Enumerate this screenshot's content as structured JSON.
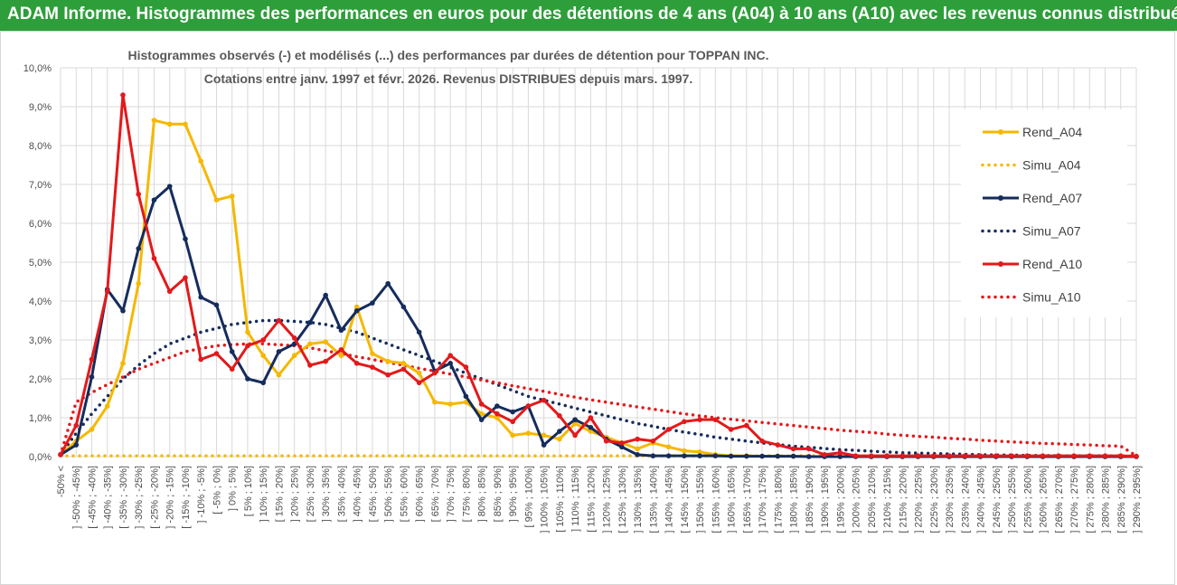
{
  "header": {
    "title": "ADAM Informe. Histogrammes des performances en euros pour des détentions de 4 ans (A04) à 10 ans (A10) avec les revenus connus distribués"
  },
  "colors": {
    "header_bg": "#2e9e3a",
    "a04": "#f5b800",
    "a07": "#152c5c",
    "a10": "#e3191b",
    "grid": "#d9d9d9",
    "axis_text": "#4d4d4d"
  },
  "chart_data": {
    "type": "line",
    "title_lines": [
      "Histogrammes observés (-) et modélisés (...) des performances par durées de détention pour TOPPAN INC.",
      "Cotations entre janv. 1997 et févr. 2026. Revenus DISTRIBUES depuis mars. 1997."
    ],
    "ylim": [
      0,
      10
    ],
    "y_ticks": [
      "0,0%",
      "1,0%",
      "2,0%",
      "3,0%",
      "4,0%",
      "5,0%",
      "6,0%",
      "7,0%",
      "8,0%",
      "9,0%",
      "10,0%"
    ],
    "categories": [
      "-50% <",
      "] -50% ; -45%]",
      "[ -45% ; -40%]",
      "] -40% ; -35%]",
      "[ -35% ; -30%]",
      "] -30% ; -25%]",
      "[ -25% ; -20%]",
      "] -20% ; -15%]",
      "[ -15% ; -10%]",
      "] -10% ; -5%]",
      "[ -5% ; 0%]",
      "] 0% ; 5%]",
      "[ 5% ; 10%]",
      "] 10% ; 15%]",
      "[ 15% ; 20%]",
      "] 20% ; 25%]",
      "[ 25% ; 30%]",
      "] 30% ; 35%]",
      "[ 35% ; 40%]",
      "] 40% ; 45%]",
      "[ 45% ; 50%]",
      "] 50% ; 55%]",
      "[ 55% ; 60%]",
      "] 60% ; 65%]",
      "[ 65% ; 70%]",
      "] 70% ; 75%]",
      "[ 75% ; 80%]",
      "] 80% ; 85%]",
      "[ 85% ; 90%]",
      "] 90% ; 95%]",
      "[ 95% ; 100%]",
      "] 100% ; 105%]",
      "[ 105% ; 110%]",
      "] 110% ; 115%]",
      "[ 115% ; 120%]",
      "] 120% ; 125%]",
      "[ 125% ; 130%]",
      "] 130% ; 135%]",
      "[ 135% ; 140%]",
      "] 140% ; 145%]",
      "[ 145% ; 150%]",
      "] 150% ; 155%]",
      "[ 155% ; 160%]",
      "] 160% ; 165%]",
      "[ 165% ; 170%]",
      "] 170% ; 175%]",
      "[ 175% ; 180%]",
      "] 180% ; 185%]",
      "[ 185% ; 190%]",
      "] 190% ; 195%]",
      "[ 195% ; 200%]",
      "] 200% ; 205%]",
      "[ 205% ; 210%]",
      "] 210% ; 215%]",
      "[ 215% ; 220%]",
      "] 220% ; 225%]",
      "[ 225% ; 230%]",
      "] 230% ; 235%]",
      "[ 235% ; 240%]",
      "] 240% ; 245%]",
      "[ 245% ; 250%]",
      "] 250% ; 255%]",
      "[ 255% ; 260%]",
      "] 260% ; 265%]",
      "[ 265% ; 270%]",
      "] 270% ; 275%]",
      "[ 275% ; 280%]",
      "] 280% ; 285%]",
      "[ 285% ; 290%]",
      "] 290% ; 295%]"
    ],
    "series": [
      {
        "name": "Rend_A04",
        "style": "solid",
        "color": "#f5b800",
        "values": [
          0.05,
          0.4,
          0.7,
          1.3,
          2.4,
          4.45,
          8.65,
          8.55,
          8.55,
          7.6,
          6.6,
          6.7,
          3.2,
          2.6,
          2.1,
          2.6,
          2.9,
          2.95,
          2.6,
          3.85,
          2.65,
          2.45,
          2.4,
          2.15,
          1.4,
          1.35,
          1.4,
          1.1,
          1.0,
          0.55,
          0.6,
          0.55,
          0.45,
          0.85,
          0.65,
          0.5,
          0.35,
          0.2,
          0.35,
          0.25,
          0.15,
          0.12,
          0.05,
          0.02,
          0.02,
          0.01,
          0.01,
          0.01,
          0,
          0,
          0,
          0,
          0,
          0,
          0,
          0,
          0,
          0,
          0,
          0,
          0,
          0,
          0,
          0,
          0,
          0,
          0,
          0,
          0,
          0
        ]
      },
      {
        "name": "Simu_A04",
        "style": "dotted",
        "color": "#f5b800",
        "values": [
          0.02,
          0.02,
          0.02,
          0.02,
          0.02,
          0.02,
          0.02,
          0.02,
          0.02,
          0.02,
          0.02,
          0.02,
          0.02,
          0.02,
          0.02,
          0.02,
          0.02,
          0.02,
          0.02,
          0.02,
          0.02,
          0.02,
          0.02,
          0.02,
          0.02,
          0.02,
          0.02,
          0.02,
          0.02,
          0.02,
          0.02,
          0.02,
          0.02,
          0.02,
          0.02,
          0.02,
          0.02,
          0.02,
          0.02,
          0.02,
          0.02,
          0.02,
          0.02,
          0.02,
          0.02,
          0.02,
          0.02,
          0.02,
          0.02,
          0.02,
          0.02,
          0.02,
          0.02,
          0.02,
          0.02,
          0.02,
          0.02,
          0.02,
          0.02,
          0.02,
          0.02,
          0.02,
          0.02,
          0.02,
          0.02,
          0.02,
          0.02,
          0.02,
          0.02,
          0.02
        ]
      },
      {
        "name": "Rend_A07",
        "style": "solid",
        "color": "#152c5c",
        "values": [
          0.05,
          0.3,
          2.05,
          4.3,
          3.75,
          5.35,
          6.6,
          6.95,
          5.6,
          4.1,
          3.9,
          2.7,
          2.0,
          1.9,
          2.7,
          2.9,
          3.45,
          4.15,
          3.25,
          3.75,
          3.95,
          4.45,
          3.85,
          3.2,
          2.2,
          2.4,
          1.55,
          0.95,
          1.3,
          1.15,
          1.3,
          0.3,
          0.65,
          0.95,
          0.75,
          0.45,
          0.25,
          0.05,
          0.02,
          0.02,
          0.02,
          0.02,
          0.02,
          0.01,
          0.01,
          0.01,
          0.01,
          0.01,
          0,
          0,
          0,
          0,
          0,
          0,
          0,
          0,
          0,
          0,
          0,
          0,
          0,
          0,
          0,
          0,
          0,
          0,
          0,
          0,
          0,
          0
        ]
      },
      {
        "name": "Simu_A07",
        "style": "dotted",
        "color": "#152c5c",
        "values": [
          0.05,
          0.6,
          1.1,
          1.55,
          2.0,
          2.35,
          2.65,
          2.9,
          3.05,
          3.2,
          3.3,
          3.4,
          3.45,
          3.5,
          3.5,
          3.48,
          3.45,
          3.4,
          3.3,
          3.2,
          3.05,
          2.9,
          2.75,
          2.6,
          2.45,
          2.3,
          2.15,
          2.0,
          1.85,
          1.7,
          1.55,
          1.45,
          1.35,
          1.25,
          1.15,
          1.05,
          0.95,
          0.85,
          0.78,
          0.7,
          0.63,
          0.57,
          0.5,
          0.45,
          0.4,
          0.35,
          0.31,
          0.27,
          0.24,
          0.21,
          0.18,
          0.16,
          0.14,
          0.12,
          0.1,
          0.09,
          0.08,
          0.07,
          0.06,
          0.05,
          0.04,
          0.04,
          0.03,
          0.03,
          0.02,
          0.02,
          0.02,
          0.02,
          0.01,
          0.01
        ]
      },
      {
        "name": "Rend_A10",
        "style": "solid",
        "color": "#e3191b",
        "values": [
          0.05,
          0.8,
          2.5,
          4.25,
          9.3,
          6.75,
          5.1,
          4.25,
          4.6,
          2.5,
          2.65,
          2.25,
          2.85,
          3.0,
          3.5,
          3.05,
          2.35,
          2.45,
          2.75,
          2.4,
          2.3,
          2.1,
          2.25,
          1.9,
          2.15,
          2.6,
          2.3,
          1.35,
          1.1,
          0.9,
          1.3,
          1.45,
          1.05,
          0.55,
          1.0,
          0.4,
          0.35,
          0.45,
          0.4,
          0.7,
          0.9,
          0.95,
          0.95,
          0.7,
          0.8,
          0.4,
          0.3,
          0.2,
          0.2,
          0.05,
          0.1,
          0.02,
          0.02,
          0.02,
          0.02,
          0.02,
          0.02,
          0.02,
          0.02,
          0.02,
          0.02,
          0.02,
          0.02,
          0.02,
          0.02,
          0.02,
          0.02,
          0.02,
          0.02,
          0.01
        ]
      },
      {
        "name": "Simu_A10",
        "style": "dotted",
        "color": "#e3191b",
        "values": [
          0.05,
          1.4,
          1.65,
          1.85,
          2.05,
          2.25,
          2.4,
          2.55,
          2.7,
          2.78,
          2.85,
          2.88,
          2.9,
          2.9,
          2.88,
          2.85,
          2.8,
          2.72,
          2.65,
          2.57,
          2.5,
          2.42,
          2.35,
          2.27,
          2.2,
          2.12,
          2.05,
          1.97,
          1.9,
          1.82,
          1.75,
          1.68,
          1.6,
          1.53,
          1.46,
          1.4,
          1.34,
          1.28,
          1.22,
          1.16,
          1.1,
          1.05,
          1.0,
          0.96,
          0.92,
          0.88,
          0.84,
          0.8,
          0.76,
          0.72,
          0.68,
          0.65,
          0.62,
          0.58,
          0.55,
          0.52,
          0.5,
          0.47,
          0.45,
          0.42,
          0.4,
          0.38,
          0.36,
          0.34,
          0.33,
          0.31,
          0.3,
          0.28,
          0.27,
          0.02
        ]
      }
    ],
    "legend_position": "right"
  }
}
